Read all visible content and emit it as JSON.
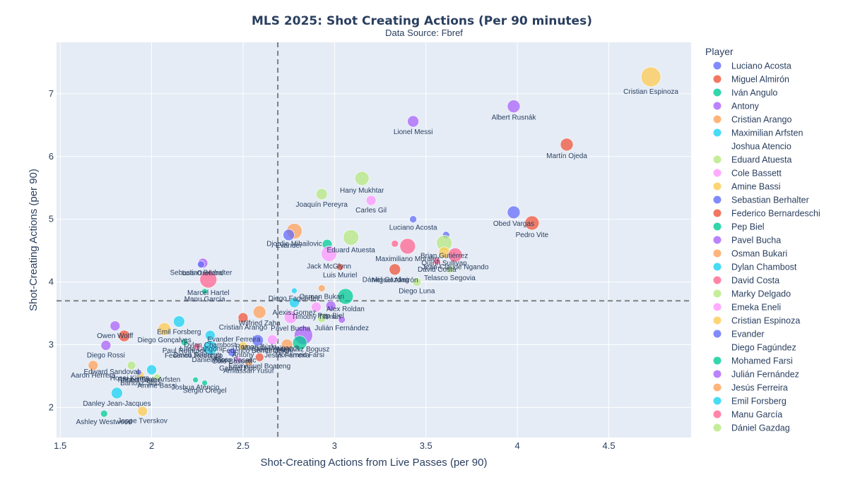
{
  "chart_data": {
    "type": "scatter",
    "title": "MLS 2025: Shot Creating Actions (Per 90 minutes)",
    "subtitle": "Data Source: Fbref",
    "xlabel": "Shot-Creating Actions from Live Passes (per 90)",
    "ylabel": "Shot-Creating Actions (per 90)",
    "xlim": [
      1.48,
      4.95
    ],
    "ylim": [
      1.52,
      7.82
    ],
    "xticks": [
      1.5,
      2,
      2.5,
      3,
      3.5,
      4,
      4.5
    ],
    "yticks": [
      2,
      3,
      4,
      5,
      6,
      7
    ],
    "xtick_labels": [
      "1.5",
      "2",
      "2.5",
      "3",
      "3.5",
      "4",
      "4.5"
    ],
    "ytick_labels": [
      "2",
      "3",
      "4",
      "5",
      "6",
      "7"
    ],
    "mean_x": 2.69,
    "mean_y": 3.7,
    "legend_title": "Player",
    "legend_position": "right",
    "grid": true,
    "palette": [
      "#636efa",
      "#EF553B",
      "#00cc96",
      "#ab63fa",
      "#FFA15A",
      "#19d3f3",
      "#FF6692",
      "#B6E880",
      "#FF97FF",
      "#FECB52"
    ],
    "legend": [
      {
        "name": "Luciano Acosta",
        "color": "#636efa"
      },
      {
        "name": "Miguel Almirón",
        "color": "#EF553B"
      },
      {
        "name": "Iván Angulo",
        "color": "#00cc96"
      },
      {
        "name": "Antony",
        "color": "#ab63fa"
      },
      {
        "name": "Cristian Arango",
        "color": "#FFA15A"
      },
      {
        "name": "Maximilian Arfsten",
        "color": "#19d3f3"
      },
      {
        "name": "Joshua Atencio",
        "color": ""
      },
      {
        "name": "Eduard Atuesta",
        "color": "#B6E880"
      },
      {
        "name": "Cole Bassett",
        "color": "#FF97FF"
      },
      {
        "name": "Amine Bassi",
        "color": "#FECB52"
      },
      {
        "name": "Sebastian Berhalter",
        "color": "#636efa"
      },
      {
        "name": "Federico Bernardeschi",
        "color": "#EF553B"
      },
      {
        "name": "Pep Biel",
        "color": "#00cc96"
      },
      {
        "name": "Pavel Bucha",
        "color": "#ab63fa"
      },
      {
        "name": "Osman Bukari",
        "color": "#FFA15A"
      },
      {
        "name": "Dylan Chambost",
        "color": "#19d3f3"
      },
      {
        "name": "David Costa",
        "color": "#FF6692"
      },
      {
        "name": "Marky Delgado",
        "color": "#B6E880"
      },
      {
        "name": "Emeka Eneli",
        "color": "#FF97FF"
      },
      {
        "name": "Cristian Espinoza",
        "color": "#FECB52"
      },
      {
        "name": "Evander",
        "color": "#636efa"
      },
      {
        "name": "Diego Fagúndez",
        "color": ""
      },
      {
        "name": "Mohamed Farsi",
        "color": "#00cc96"
      },
      {
        "name": "Julián Fernández",
        "color": "#ab63fa"
      },
      {
        "name": "Jesús Ferreira",
        "color": "#FFA15A"
      },
      {
        "name": "Emil Forsberg",
        "color": "#19d3f3"
      },
      {
        "name": "Manu García",
        "color": "#FF6692"
      },
      {
        "name": "Dániel Gazdag",
        "color": "#B6E880"
      }
    ],
    "points": [
      {
        "x": 4.73,
        "y": 7.27,
        "r": 14,
        "c": 9,
        "label": "Cristian Espinoza"
      },
      {
        "x": 3.98,
        "y": 6.8,
        "r": 9,
        "c": 3,
        "label": "Albert Rusnák"
      },
      {
        "x": 3.43,
        "y": 6.56,
        "r": 8,
        "c": 3,
        "label": "Lionel Messi"
      },
      {
        "x": 4.27,
        "y": 6.19,
        "r": 9,
        "c": 1,
        "label": "Martín Ojeda"
      },
      {
        "x": 3.15,
        "y": 5.65,
        "r": 10,
        "c": 7,
        "label": "Hany Mukhtar"
      },
      {
        "x": 2.93,
        "y": 5.4,
        "r": 8,
        "c": 7,
        "label": "Joaquín Pereyra"
      },
      {
        "x": 3.2,
        "y": 5.3,
        "r": 7,
        "c": 8,
        "label": "Carles Gil"
      },
      {
        "x": 3.98,
        "y": 5.11,
        "r": 9,
        "c": 0,
        "label": "Obed Vargas"
      },
      {
        "x": 4.08,
        "y": 4.94,
        "r": 10,
        "c": 1,
        "label": "Pedro Vite"
      },
      {
        "x": 3.43,
        "y": 5.0,
        "r": 5,
        "c": 0,
        "label": "Luciano Acosta"
      },
      {
        "x": 2.78,
        "y": 4.81,
        "r": 11,
        "c": 4,
        "label": "Djordje Mihailovic"
      },
      {
        "x": 2.75,
        "y": 4.75,
        "r": 8,
        "c": 0,
        "label": "Evander"
      },
      {
        "x": 3.09,
        "y": 4.71,
        "r": 11,
        "c": 7,
        "label": "Eduard Atuesta"
      },
      {
        "x": 3.61,
        "y": 4.75,
        "r": 5,
        "c": 0,
        "label": ""
      },
      {
        "x": 3.6,
        "y": 4.62,
        "r": 11,
        "c": 7,
        "label": "Brian Gutiérrez"
      },
      {
        "x": 2.96,
        "y": 4.6,
        "r": 7,
        "c": 2,
        "label": ""
      },
      {
        "x": 3.4,
        "y": 4.57,
        "r": 11,
        "c": 6,
        "label": "Maximiliano Moralez"
      },
      {
        "x": 3.33,
        "y": 4.61,
        "r": 5,
        "c": 6,
        "label": ""
      },
      {
        "x": 2.97,
        "y": 4.45,
        "r": 11,
        "c": 8,
        "label": "Jack McGlynn"
      },
      {
        "x": 3.6,
        "y": 4.47,
        "r": 8,
        "c": 9,
        "label": "Quinn Sullivan"
      },
      {
        "x": 3.66,
        "y": 4.43,
        "r": 10,
        "c": 6,
        "label": "Jean-Claude Ngando"
      },
      {
        "x": 3.56,
        "y": 4.33,
        "r": 5,
        "c": 6,
        "label": "David Costa"
      },
      {
        "x": 3.63,
        "y": 4.2,
        "r": 5,
        "c": 7,
        "label": "Telasco Segovia"
      },
      {
        "x": 3.03,
        "y": 4.24,
        "r": 5,
        "c": 1,
        "label": "Luis Muriel"
      },
      {
        "x": 3.33,
        "y": 4.2,
        "r": 8,
        "c": 1,
        "label": "Miguel Almirón"
      },
      {
        "x": 2.28,
        "y": 4.3,
        "r": 7,
        "c": 3,
        "label": "Luis Orellano"
      },
      {
        "x": 2.27,
        "y": 4.28,
        "r": 5,
        "c": 0,
        "label": "Sebastian Berhalter"
      },
      {
        "x": 3.45,
        "y": 4.0,
        "r": 6,
        "c": 7,
        "label": "Diego Luna"
      },
      {
        "x": 2.31,
        "y": 4.04,
        "r": 12,
        "c": 6,
        "label": "Marcel Hartel"
      },
      {
        "x": 2.29,
        "y": 3.85,
        "r": 4,
        "c": 2,
        "label": "Manu García"
      },
      {
        "x": 2.93,
        "y": 3.9,
        "r": 5,
        "c": 4,
        "label": "Osman Bukari"
      },
      {
        "x": 2.78,
        "y": 3.86,
        "r": 4,
        "c": 5,
        "label": "Diego Fagúndez"
      },
      {
        "x": 3.06,
        "y": 3.77,
        "r": 11,
        "c": 2,
        "label": "Alex Roldan"
      },
      {
        "x": 2.78,
        "y": 3.67,
        "r": 7,
        "c": 5,
        "label": "Alexis Gomez"
      },
      {
        "x": 2.59,
        "y": 3.52,
        "r": 9,
        "c": 4,
        "label": "Wilfried Zaha"
      },
      {
        "x": 2.9,
        "y": 3.6,
        "r": 7,
        "c": 8,
        "label": "Timothy Tillman"
      },
      {
        "x": 2.98,
        "y": 3.62,
        "r": 7,
        "c": 3,
        "label": "Pep Biel"
      },
      {
        "x": 2.5,
        "y": 3.43,
        "r": 7,
        "c": 1,
        "label": "Cristian Arango"
      },
      {
        "x": 2.76,
        "y": 3.44,
        "r": 9,
        "c": 8,
        "label": "Pavel Bucha"
      },
      {
        "x": 2.93,
        "y": 3.42,
        "r": 6,
        "c": 7,
        "label": ""
      },
      {
        "x": 3.04,
        "y": 3.4,
        "r": 5,
        "c": 3,
        "label": "Julián Fernández"
      },
      {
        "x": 2.83,
        "y": 3.15,
        "r": 13,
        "c": 3,
        "label": "Mateusz Bogusz"
      },
      {
        "x": 2.15,
        "y": 3.37,
        "r": 8,
        "c": 5,
        "label": "Emil Forsberg"
      },
      {
        "x": 2.07,
        "y": 3.25,
        "r": 9,
        "c": 9,
        "label": "Diego Gonçalves"
      },
      {
        "x": 2.58,
        "y": 3.07,
        "r": 8,
        "c": 0,
        "label": "Federico Bernardeschi"
      },
      {
        "x": 2.66,
        "y": 3.08,
        "r": 7,
        "c": 8,
        "label": "Sean Lewis"
      },
      {
        "x": 1.8,
        "y": 3.3,
        "r": 7,
        "c": 3,
        "label": "Owen Wolff"
      },
      {
        "x": 1.85,
        "y": 3.14,
        "r": 8,
        "c": 1,
        "label": ""
      },
      {
        "x": 1.75,
        "y": 2.99,
        "r": 7,
        "c": 3,
        "label": "Diego Rossi"
      },
      {
        "x": 2.18,
        "y": 3.04,
        "r": 5,
        "c": 2,
        "label": "Paul Rothrock"
      },
      {
        "x": 2.32,
        "y": 3.15,
        "r": 7,
        "c": 5,
        "label": "Dylan Chambost"
      },
      {
        "x": 2.32,
        "y": 2.95,
        "r": 10,
        "c": 5,
        "label": "Daniel Ríos"
      },
      {
        "x": 2.5,
        "y": 2.98,
        "r": 6,
        "c": 9,
        "label": "Antony"
      },
      {
        "x": 2.74,
        "y": 3.0,
        "r": 8,
        "c": 4,
        "label": "Jesús Ferreira"
      },
      {
        "x": 2.81,
        "y": 3.03,
        "r": 10,
        "c": 2,
        "label": "Mohamed Farsi"
      },
      {
        "x": 2.59,
        "y": 2.8,
        "r": 6,
        "c": 1,
        "label": "Emmanuel Boateng"
      },
      {
        "x": 2.47,
        "y": 2.76,
        "r": 5,
        "c": 8,
        "label": "Gabriel Pec"
      },
      {
        "x": 2.53,
        "y": 2.72,
        "r": 5,
        "c": 4,
        "label": "Amiassan Yusuf"
      },
      {
        "x": 2.44,
        "y": 2.88,
        "r": 6,
        "c": 0,
        "label": "Cole Bassett"
      },
      {
        "x": 2.25,
        "y": 2.97,
        "r": 5,
        "c": 6,
        "label": "David Schnegg"
      },
      {
        "x": 1.68,
        "y": 2.67,
        "r": 7,
        "c": 4,
        "label": "Aaron Herrera"
      },
      {
        "x": 1.89,
        "y": 2.67,
        "r": 6,
        "c": 7,
        "label": ""
      },
      {
        "x": 2.0,
        "y": 2.6,
        "r": 7,
        "c": 5,
        "label": "Maximilian Arfsten"
      },
      {
        "x": 1.94,
        "y": 2.52,
        "r": 5,
        "c": 9,
        "label": "Bartosz Slisz"
      },
      {
        "x": 1.93,
        "y": 2.56,
        "r": 4,
        "c": 0,
        "label": "Robert Taylor"
      },
      {
        "x": 2.24,
        "y": 2.44,
        "r": 4,
        "c": 2,
        "label": "Joshua Atencio"
      },
      {
        "x": 2.29,
        "y": 2.39,
        "r": 4,
        "c": 2,
        "label": "Sergio Oregel"
      },
      {
        "x": 2.03,
        "y": 2.48,
        "r": 5,
        "c": 7,
        "label": "Amine Bassi"
      },
      {
        "x": 1.81,
        "y": 2.23,
        "r": 8,
        "c": 5,
        "label": "Danley Jean-Jacques"
      },
      {
        "x": 1.74,
        "y": 1.9,
        "r": 5,
        "c": 2,
        "label": "Ashley Westwood"
      },
      {
        "x": 1.95,
        "y": 1.94,
        "r": 7,
        "c": 9,
        "label": "Jeppe Tverskov"
      }
    ],
    "extra_labels": [
      {
        "x": 2.45,
        "y": 3.05,
        "text": "Evander Ferreira"
      },
      {
        "x": 2.27,
        "y": 2.9,
        "text": "Luca Langoni"
      },
      {
        "x": 2.45,
        "y": 2.72,
        "text": "Marco Pasalic"
      },
      {
        "x": 2.23,
        "y": 2.79,
        "text": "Federico Redondo"
      },
      {
        "x": 2.57,
        "y": 2.93,
        "text": "Roman Bürki"
      },
      {
        "x": 1.78,
        "y": 2.53,
        "text": "Edward Sandoval"
      },
      {
        "x": 1.88,
        "y": 2.43,
        "text": "Hosei Kijima"
      },
      {
        "x": 2.65,
        "y": 2.91,
        "text": "Marcelo Weigandt"
      },
      {
        "x": 3.28,
        "y": 4.0,
        "text": "Dániel Gazdag"
      }
    ]
  }
}
